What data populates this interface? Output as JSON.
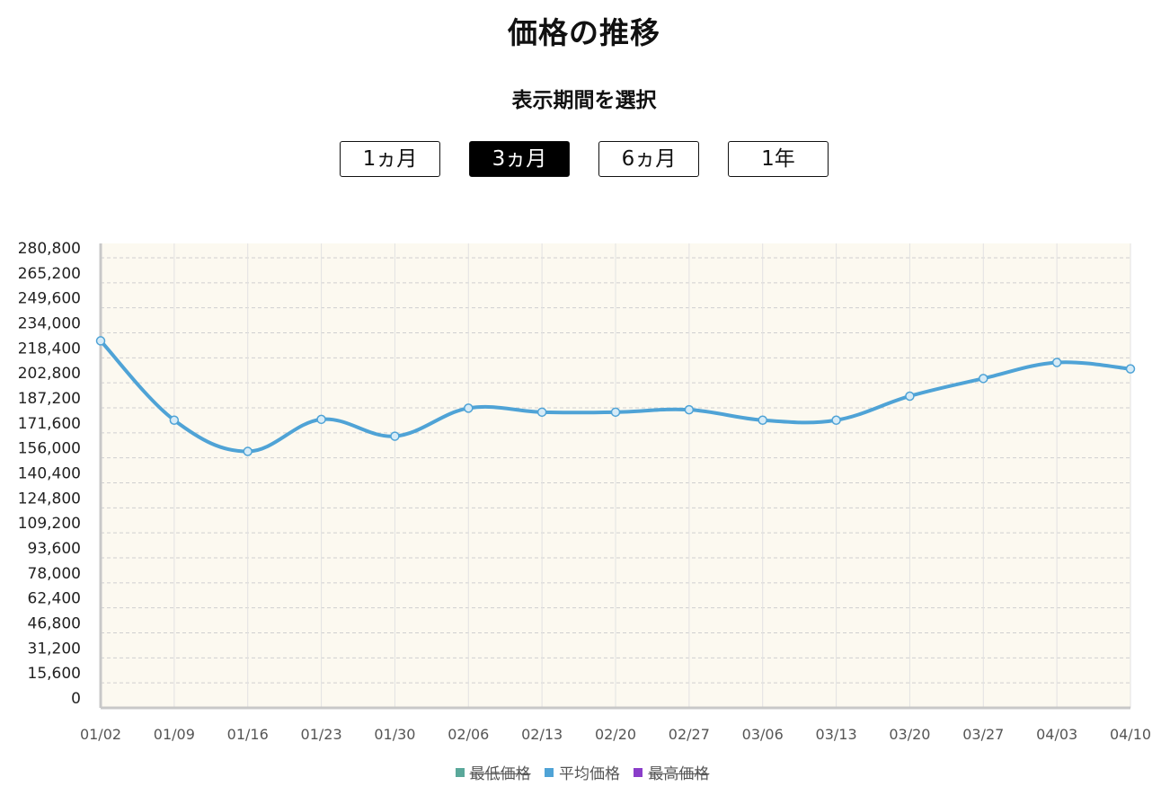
{
  "title": "価格の推移",
  "period_selector": {
    "heading": "表示期間を選択",
    "options": [
      {
        "label": "1ヵ月",
        "active": false
      },
      {
        "label": "3ヵ月",
        "active": true
      },
      {
        "label": "6ヵ月",
        "active": false
      },
      {
        "label": "1年",
        "active": false
      }
    ]
  },
  "colors": {
    "plot_background": "#fcf9f0",
    "series_line": "#4fa3d6",
    "legend_min": "#5aa89a",
    "legend_avg": "#4fa3d6",
    "legend_max": "#8a3ec9"
  },
  "legend": [
    {
      "label": "最低価格",
      "color": "#5aa89a",
      "visible": false
    },
    {
      "label": "平均価格",
      "color": "#4fa3d6",
      "visible": true
    },
    {
      "label": "最高価格",
      "color": "#8a3ec9",
      "visible": false
    }
  ],
  "chart_data": {
    "type": "line",
    "title": "",
    "xlabel": "",
    "ylabel": "",
    "categories": [
      "01/02",
      "01/09",
      "01/16",
      "01/23",
      "01/30",
      "02/06",
      "02/13",
      "02/20",
      "02/27",
      "03/06",
      "03/13",
      "03/20",
      "03/27",
      "04/03",
      "04/10"
    ],
    "y_ticks": [
      "0",
      "15,600",
      "31,200",
      "46,800",
      "62,400",
      "78,000",
      "93,600",
      "109,200",
      "124,800",
      "140,400",
      "156,000",
      "171,600",
      "187,200",
      "202,800",
      "218,400",
      "234,000",
      "249,600",
      "265,200",
      "280,800"
    ],
    "ylim": [
      0,
      280800
    ],
    "grid": true,
    "legend_position": "bottom",
    "series": [
      {
        "name": "平均価格",
        "values": [
          229000,
          179500,
          160000,
          180000,
          169500,
          187000,
          184500,
          184500,
          186000,
          179500,
          179500,
          194500,
          205500,
          215500,
          211500
        ]
      }
    ]
  }
}
